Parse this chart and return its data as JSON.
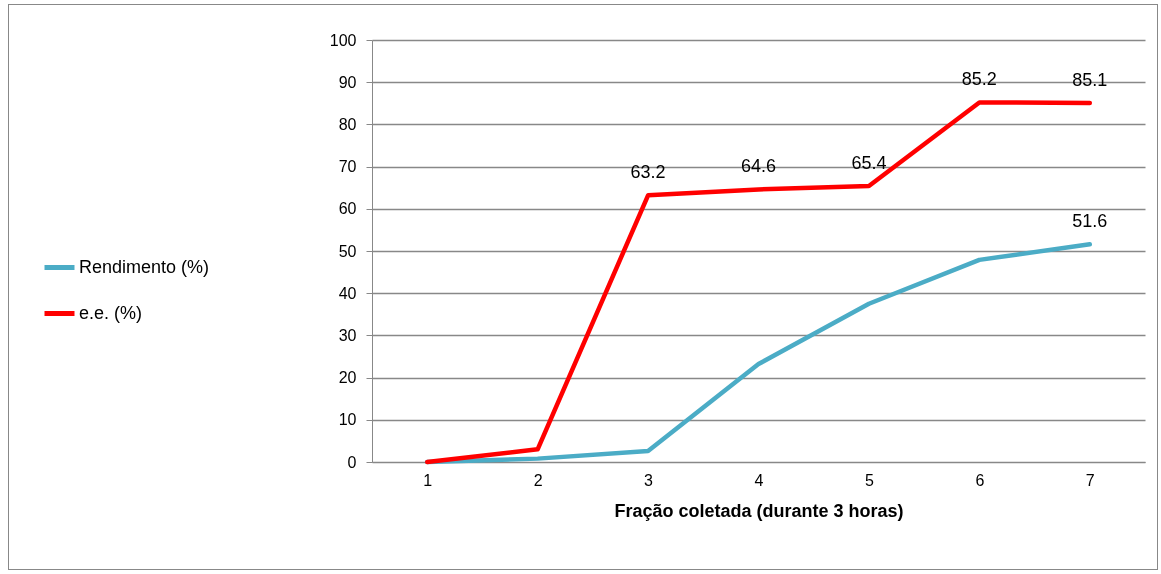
{
  "chart_data": {
    "type": "line",
    "xlabel": "Fração coletada (durante 3 horas)",
    "categories": [
      "1",
      "2",
      "3",
      "4",
      "5",
      "6",
      "7"
    ],
    "series": [
      {
        "name": "Rendimento (%)",
        "color": "#4bacc6",
        "values": [
          0,
          0.8,
          2.6,
          23.2,
          37.5,
          47.9,
          51.6
        ],
        "value_labels": [
          null,
          null,
          null,
          null,
          null,
          null,
          "51.6"
        ]
      },
      {
        "name": "e.e. (%)",
        "color": "#ff0000",
        "values": [
          0,
          3,
          63.2,
          64.6,
          65.4,
          85.2,
          85.1
        ],
        "value_labels": [
          null,
          null,
          "63.2",
          "64.6",
          "65.4",
          "85.2",
          "85.1"
        ]
      }
    ],
    "ylim": [
      0,
      100
    ],
    "yticks": [
      0,
      10,
      20,
      30,
      40,
      50,
      60,
      70,
      80,
      90,
      100
    ],
    "grid": "y",
    "legend": "left",
    "marker": "none",
    "line_style": "solid"
  }
}
